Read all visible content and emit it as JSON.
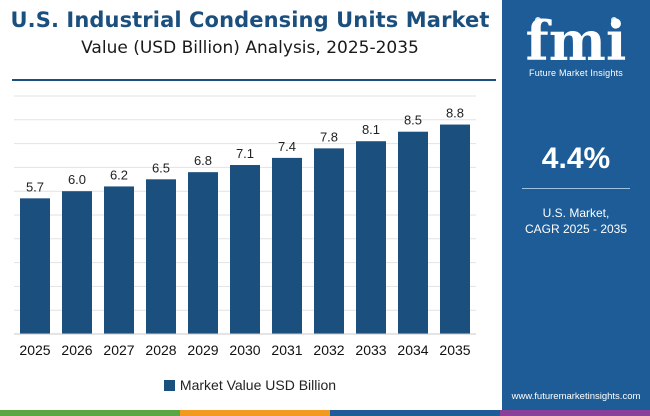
{
  "chart_data": {
    "type": "bar",
    "title": "U.S. Industrial Condensing Units Market",
    "subtitle": "Value (USD Billion) Analysis, 2025-2035",
    "categories": [
      "2025",
      "2026",
      "2027",
      "2028",
      "2029",
      "2030",
      "2031",
      "2032",
      "2033",
      "2034",
      "2035"
    ],
    "series": [
      {
        "name": "Market Value USD Billion",
        "values": [
          5.7,
          6.0,
          6.2,
          6.5,
          6.8,
          7.1,
          7.4,
          7.8,
          8.1,
          8.5,
          8.8
        ]
      }
    ],
    "data_labels": [
      "5.7",
      "6.0",
      "6.2",
      "6.5",
      "6.8",
      "7.1",
      "7.4",
      "7.8",
      "8.1",
      "8.5",
      "8.8"
    ],
    "ylim": [
      0,
      10
    ],
    "grid": true,
    "legend_position": "bottom",
    "bar_color": "#1b4f7e"
  },
  "legend": {
    "label": "Market Value USD Billion"
  },
  "sidebar": {
    "logo_letters": "fmi",
    "logo_text": "Future Market Insights",
    "cagr_value": "4.4%",
    "cagr_line1": "U.S. Market,",
    "cagr_line2": "CAGR 2025 - 2035",
    "website": "www.futuremarketinsights.com",
    "background": "#1d5c96"
  },
  "bottom_bar_colors": [
    "#5aa642",
    "#f29a1f",
    "#1d5c96",
    "#8a3f98"
  ]
}
